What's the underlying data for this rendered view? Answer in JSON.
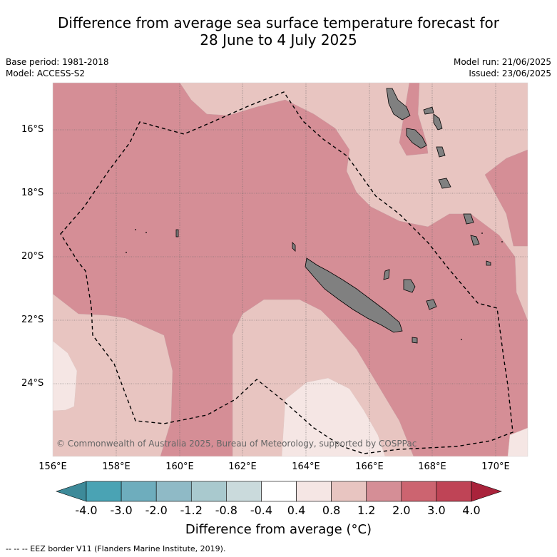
{
  "header": {
    "title_line1": "Difference from average sea surface temperature forecast for",
    "title_line2": "28 June to 4 July 2025",
    "base_period": "Base period: 1981-2018",
    "model": "Model: ACCESS-S2",
    "model_run": "Model run: 21/06/2025",
    "issued": "Issued: 23/06/2025"
  },
  "map": {
    "lon_ticks": [
      "156°E",
      "158°E",
      "160°E",
      "162°E",
      "164°E",
      "166°E",
      "168°E",
      "170°E"
    ],
    "lat_ticks": [
      "16°S",
      "18°S",
      "20°S",
      "22°S",
      "24°S"
    ],
    "copyright": "© Commonwealth of Australia 2025, Bureau of Meteorology, supported by COSPPac"
  },
  "colorbar": {
    "labels": [
      "-4.0",
      "-3.0",
      "-2.0",
      "-1.2",
      "-0.8",
      "-0.4",
      "0.4",
      "0.8",
      "1.2",
      "2.0",
      "3.0",
      "4.0"
    ],
    "colors": [
      "#4aa3b4",
      "#6eadbd",
      "#8fbac6",
      "#a9c9ce",
      "#cadadc",
      "#ffffff",
      "#f5e6e4",
      "#e8c5c1",
      "#d58e96",
      "#cc6470",
      "#bf4456"
    ],
    "low_extend_color": "#3d8a99",
    "high_extend_color": "#a9233b",
    "title": "Difference from average (°C)"
  },
  "legend": {
    "eez_note": "-- -- -- EEZ border V11 (Flanders Marine Institute, 2019)."
  }
}
